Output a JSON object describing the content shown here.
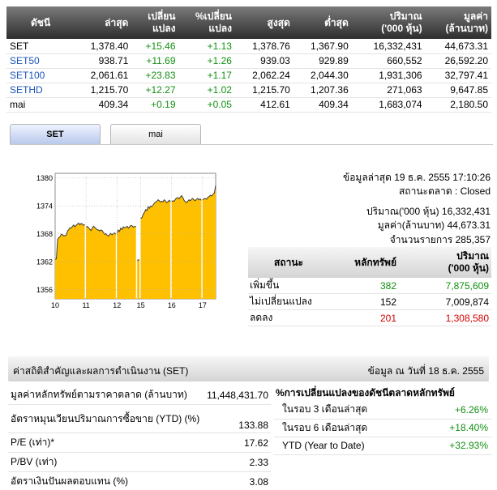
{
  "index_table": {
    "headers": [
      "ดัชนี",
      "ล่าสุด",
      "เปลี่ยน\nแปลง",
      "%เปลี่ยน\nแปลง",
      "สูงสุด",
      "ต่ำสุด",
      "ปริมาณ\n('000 หุ้น)",
      "มูลค่า\n(ล้านบาท)"
    ],
    "rows": [
      {
        "name": "SET",
        "last": "1,378.40",
        "change": "+15.46",
        "pct": "+1.13",
        "high": "1,378.76",
        "low": "1,367.90",
        "volume": "16,332,431",
        "value": "44,673.31",
        "link": false
      },
      {
        "name": "SET50",
        "last": "938.71",
        "change": "+11.69",
        "pct": "+1.26",
        "high": "939.03",
        "low": "929.89",
        "volume": "660,552",
        "value": "26,592.20",
        "link": true
      },
      {
        "name": "SET100",
        "last": "2,061.61",
        "change": "+23.83",
        "pct": "+1.17",
        "high": "2,062.24",
        "low": "2,044.30",
        "volume": "1,931,306",
        "value": "32,797.41",
        "link": true
      },
      {
        "name": "SETHD",
        "last": "1,215.70",
        "change": "+12.27",
        "pct": "+1.02",
        "high": "1,215.70",
        "low": "1,207.36",
        "volume": "271,063",
        "value": "9,647.85",
        "link": true
      },
      {
        "name": "mai",
        "last": "409.34",
        "change": "+0.19",
        "pct": "+0.05",
        "high": "412.61",
        "low": "409.34",
        "volume": "1,683,074",
        "value": "2,180.50",
        "link": false
      }
    ]
  },
  "tabs": [
    {
      "label": "SET",
      "active": true
    },
    {
      "label": "mai",
      "active": false
    }
  ],
  "chart_data": {
    "type": "area",
    "title": "",
    "xlabel": "",
    "ylabel": "",
    "x_ticks": [
      "10",
      "11",
      "12",
      "15",
      "16",
      "17"
    ],
    "y_ticks": [
      1356,
      1362,
      1368,
      1374,
      1380
    ],
    "ylim": [
      1354,
      1381
    ],
    "grid": true,
    "fill_color": "#ffc000",
    "line_color": "#3a3a3a",
    "sessions": [
      {
        "day": "10",
        "values": [
          1362.5,
          1362.6,
          1366.8,
          1367.2,
          1367.4,
          1367.9,
          1367.8,
          1367.5,
          1367.6,
          1367.7,
          1368.6,
          1368.9,
          1369.3,
          1369.2,
          1369.6,
          1369.9,
          1369.5,
          1369.8,
          1370.1,
          1370.3,
          1369.9,
          1370.2,
          1370.1,
          1369.8,
          1370.0
        ]
      },
      {
        "day": "11",
        "values": [
          1369.4,
          1369.6,
          1369.3,
          1369.0,
          1368.7,
          1369.2,
          1369.6,
          1369.4,
          1369.1,
          1368.9,
          1368.8,
          1368.6,
          1368.8,
          1368.7,
          1368.3,
          1367.9,
          1368.0,
          1367.7,
          1367.5,
          1367.8,
          1368.1,
          1367.8,
          1368.0,
          1368.2,
          1367.9
        ]
      },
      {
        "day": "12",
        "values": [
          1368.2,
          1368.8,
          1368.5,
          1369.2,
          1368.9,
          1369.5,
          1369.3,
          1369.4,
          1369.6,
          1369.2,
          1369.5,
          1369.8,
          1369.7,
          1369.4,
          1369.6,
          1369.5
        ]
      },
      {
        "day": "13",
        "values": [
          1362.3,
          1362.4
        ]
      },
      {
        "day": "15",
        "values": [
          1371.3,
          1371.5,
          1372.2,
          1372.6,
          1373.2,
          1373.0,
          1373.8,
          1373.5,
          1374.0,
          1373.8,
          1374.2,
          1374.6,
          1374.8,
          1375.0,
          1375.3,
          1375.1,
          1374.8,
          1375.0,
          1374.9,
          1375.3,
          1375.0,
          1374.7,
          1374.9,
          1375.2,
          1374.9
        ]
      },
      {
        "day": "16",
        "values": [
          1374.9,
          1375.1,
          1375.0,
          1375.4,
          1375.7,
          1375.8,
          1375.5,
          1375.9,
          1376.2,
          1375.8,
          1375.2,
          1374.9,
          1374.7,
          1375.0,
          1375.3,
          1375.1,
          1375.4,
          1375.6,
          1375.3,
          1375.1,
          1375.4,
          1375.6,
          1375.3,
          1375.5,
          1375.2
        ]
      },
      {
        "day": "17",
        "values": [
          1375.3,
          1375.5,
          1375.6,
          1375.4,
          1375.8,
          1376.0,
          1376.3,
          1376.1,
          1376.5,
          1376.8,
          1378.4
        ]
      }
    ]
  },
  "info": {
    "updated": "ข้อมูลล่าสุด 19 ธ.ค. 2555 17:10:26",
    "market_status": "สถานะตลาด : Closed",
    "volume": "ปริมาณ('000 หุ้น) 16,332,431",
    "value": "มูลค่า(ล้านบาท) 44,673.31",
    "trades": "จำนวนรายการ 285,357"
  },
  "status_table": {
    "headers": [
      "สถานะ",
      "หลักทรัพย์",
      "ปริมาณ\n('000 หุ้น)"
    ],
    "rows": [
      {
        "label": "เพิ่มขึ้น",
        "count": "382",
        "volume": "7,875,609",
        "cls": "pos"
      },
      {
        "label": "ไม่เปลี่ยนแปลง",
        "count": "152",
        "volume": "7,009,874",
        "cls": ""
      },
      {
        "label": "ลดลง",
        "count": "201",
        "volume": "1,308,580",
        "cls": "neg"
      }
    ]
  },
  "stats": {
    "title": "ค่าสถิติสำคัญและผลการดำเนินงาน (SET)",
    "date": "ข้อมูล ณ วันที่ 18 ธ.ค. 2555",
    "left": [
      {
        "label": "มูลค่าหลักทรัพย์ตามราคาตลาด (ล้านบาท)",
        "value": "11,448,431.70"
      },
      {
        "label": "อัตราหมุนเวียนปริมาณการซื้อขาย (YTD) (%)",
        "value": "133.88"
      },
      {
        "label": "P/E (เท่า)*",
        "value": "17.62"
      },
      {
        "label": "P/BV (เท่า)",
        "value": "2.33"
      },
      {
        "label": "อัตราเงินปันผลตอบแทน (%)",
        "value": "3.08"
      }
    ],
    "right_title": "%การเปลี่ยนแปลงของดัชนีตลาดหลักทรัพย์",
    "right": [
      {
        "label": "ในรอบ 3 เดือนล่าสุด",
        "value": "+6.26%"
      },
      {
        "label": "ในรอบ 6 เดือนล่าสุด",
        "value": "+18.40%"
      },
      {
        "label": "YTD (Year to Date)",
        "value": "+32.93%"
      }
    ]
  }
}
